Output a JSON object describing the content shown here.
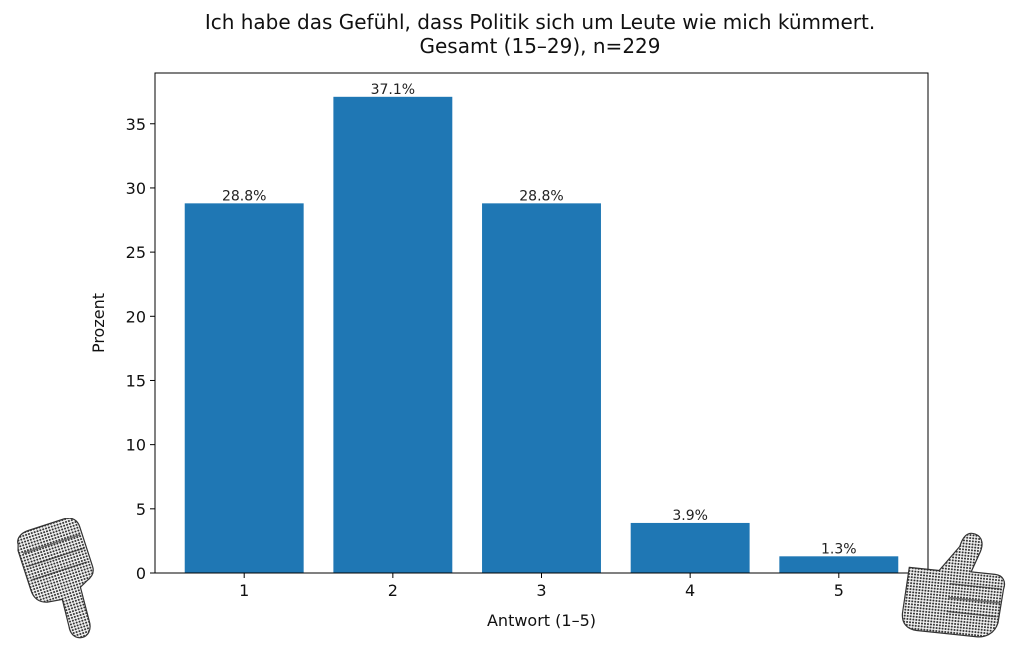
{
  "chart_data": {
    "type": "bar",
    "title": "Ich habe das Gefühl, dass Politik sich um Leute wie mich kümmert.",
    "subtitle": "Gesamt (15–29), n=229",
    "xlabel": "Antwort (1–5)",
    "ylabel": "Prozent",
    "categories": [
      "1",
      "2",
      "3",
      "4",
      "5"
    ],
    "values": [
      28.8,
      37.1,
      28.8,
      3.9,
      1.3
    ],
    "data_labels": [
      "28.8%",
      "37.1%",
      "28.8%",
      "3.9%",
      "1.3%"
    ],
    "ylim": [
      0,
      38.955
    ],
    "yticks": [
      0,
      5,
      10,
      15,
      20,
      25,
      30,
      35
    ],
    "grid": false,
    "bar_color": "#1f77b4"
  },
  "decorations": {
    "left": "thumbs-down-icon",
    "right": "thumbs-up-icon"
  }
}
